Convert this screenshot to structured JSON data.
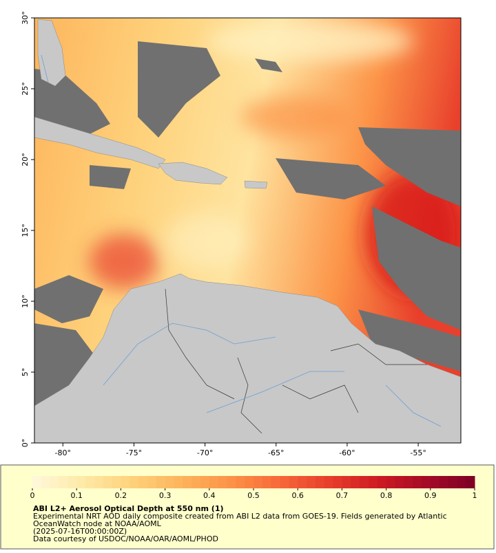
{
  "map": {
    "lon_range": [
      -82,
      -52
    ],
    "lat_range": [
      0,
      30
    ],
    "lon_ticks": [
      {
        "value": -80,
        "label": "-80°"
      },
      {
        "value": -75,
        "label": "-75°"
      },
      {
        "value": -70,
        "label": "-70°"
      },
      {
        "value": -65,
        "label": "-65°"
      },
      {
        "value": -60,
        "label": "-60°"
      },
      {
        "value": -55,
        "label": "-55°"
      }
    ],
    "lat_ticks": [
      {
        "value": 0,
        "label": "0°"
      },
      {
        "value": 5,
        "label": "5°"
      },
      {
        "value": 10,
        "label": "10°"
      },
      {
        "value": 15,
        "label": "15°"
      },
      {
        "value": 20,
        "label": "20°"
      },
      {
        "value": 25,
        "label": "25°"
      },
      {
        "value": 30,
        "label": "30°"
      }
    ]
  },
  "colorbar": {
    "range": [
      0,
      1
    ],
    "ticks": [
      0,
      0.1,
      0.2,
      0.3,
      0.4,
      0.5,
      0.6,
      0.7,
      0.8,
      0.9,
      1
    ],
    "colors": [
      "#fff8dc",
      "#feeaa8",
      "#fed27c",
      "#fdb55c",
      "#fc9448",
      "#f86a3a",
      "#e8402c",
      "#cf1b22",
      "#a50b26",
      "#7d0025"
    ]
  },
  "caption": {
    "title": "ABI L2+ Aerosol Optical Depth at 550 nm (1)",
    "lines": [
      "Experimental NRT AOD daily composite created from ABI L2 data from GOES-19. Fields generated by Atlantic",
      "OceanWatch node at NOAA/AOML",
      "(2025-07-16T00:00:00Z)",
      "Data courtesy of USDOC/NOAA/OAR/AOML/PHOD"
    ]
  }
}
